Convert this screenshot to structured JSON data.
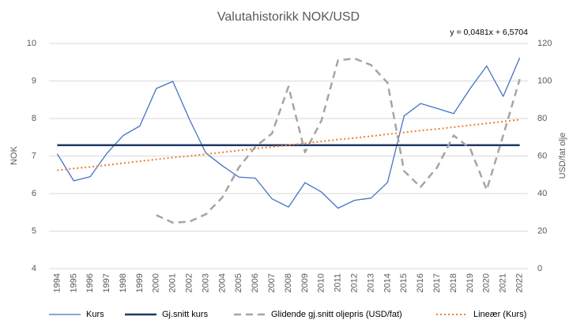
{
  "chart_data": {
    "type": "line",
    "title": "Valutahistorikk NOK/USD",
    "annotation": "y = 0,0481x + 6,5704",
    "ylabel": "NOK",
    "y2label": "USD/fat olje",
    "categories": [
      "1994",
      "1995",
      "1996",
      "1997",
      "1998",
      "1999",
      "2000",
      "2001",
      "2002",
      "2003",
      "2004",
      "2005",
      "2006",
      "2007",
      "2008",
      "2009",
      "2010",
      "2011",
      "2012",
      "2013",
      "2014",
      "2015",
      "2016",
      "2017",
      "2018",
      "2019",
      "2020",
      "2021",
      "2022"
    ],
    "ylim": [
      4,
      10
    ],
    "yticks": [
      4,
      5,
      6,
      7,
      8,
      9,
      10
    ],
    "y2lim": [
      0,
      120
    ],
    "y2ticks": [
      0,
      20,
      40,
      60,
      80,
      100,
      120
    ],
    "grid": true,
    "legend": "bottom",
    "series": [
      {
        "name": "Kurs",
        "color": "#4472c4",
        "dash": "solid",
        "values": [
          7.06,
          6.34,
          6.45,
          7.07,
          7.55,
          7.8,
          8.8,
          8.99,
          7.98,
          7.08,
          6.74,
          6.44,
          6.41,
          5.86,
          5.64,
          6.29,
          6.04,
          5.61,
          5.82,
          5.88,
          6.3,
          8.07,
          8.4,
          8.27,
          8.13,
          8.8,
          9.4,
          8.59,
          9.62
        ]
      },
      {
        "name": "Gj.snitt kurs",
        "color": "#203864",
        "dash": "thick",
        "values": [
          7.29,
          7.29,
          7.29,
          7.29,
          7.29,
          7.29,
          7.29,
          7.29,
          7.29,
          7.29,
          7.29,
          7.29,
          7.29,
          7.29,
          7.29,
          7.29,
          7.29,
          7.29,
          7.29,
          7.29,
          7.29,
          7.29,
          7.29,
          7.29,
          7.29,
          7.29,
          7.29,
          7.29,
          7.29
        ]
      },
      {
        "name": "Glidende gj.snitt oljepris (USD/fat)",
        "color": "#a5a5a5",
        "dash": "dashed",
        "axis": "y2",
        "values": [
          null,
          null,
          null,
          null,
          null,
          null,
          28.5,
          24.5,
          25,
          29,
          38,
          54,
          65,
          72,
          97,
          62,
          79,
          111,
          112,
          108.5,
          99,
          52,
          43.5,
          54,
          71,
          64,
          42,
          71,
          101
        ]
      },
      {
        "name": "Lineær (Kurs)",
        "color": "#ed7d31",
        "dash": "dotted",
        "values": [
          6.62,
          6.67,
          6.71,
          6.76,
          6.81,
          6.86,
          6.91,
          6.96,
          7.0,
          7.05,
          7.1,
          7.15,
          7.2,
          7.24,
          7.29,
          7.34,
          7.39,
          7.44,
          7.48,
          7.53,
          7.58,
          7.63,
          7.68,
          7.72,
          7.77,
          7.82,
          7.87,
          7.92,
          7.97
        ]
      }
    ]
  }
}
